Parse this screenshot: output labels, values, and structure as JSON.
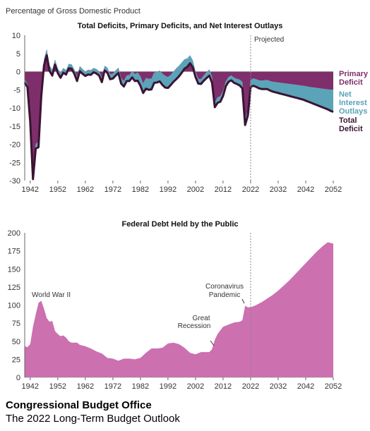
{
  "top_ylabel": "Percentage of Gross Domestic Product",
  "footer": {
    "org": "Congressional Budget Office",
    "publication": "The 2022 Long-Term Budget Outlook"
  },
  "colors": {
    "primary_deficit": "#7e2f6b",
    "net_interest": "#5aa3b8",
    "total_deficit": "#3a1433",
    "debt_fill": "#cc70b0",
    "axis": "#666666",
    "projected_line": "#888888"
  },
  "chart_data": [
    {
      "type": "area",
      "title": "Total Deficits, Primary Deficits, and Net Interest Outlays",
      "ylabel": "Percentage of Gross Domestic Product",
      "xlim": [
        1940,
        2052
      ],
      "ylim": [
        -30,
        10
      ],
      "xticks": [
        1942,
        1952,
        1962,
        1972,
        1982,
        1992,
        2002,
        2012,
        2022,
        2032,
        2042,
        2052
      ],
      "yticks": [
        10,
        5,
        0,
        -5,
        -10,
        -15,
        -20,
        -25,
        -30
      ],
      "projected_label": "Projected",
      "projected_from": 2022,
      "legend": [
        "Primary Deficit",
        "Net Interest Outlays",
        "Total Deficit"
      ],
      "series": [
        {
          "name": "Total Deficit",
          "x": [
            1940,
            1941,
            1942,
            1943,
            1944,
            1945,
            1946,
            1947,
            1948,
            1949,
            1950,
            1951,
            1952,
            1953,
            1954,
            1955,
            1956,
            1957,
            1958,
            1959,
            1960,
            1961,
            1962,
            1963,
            1964,
            1965,
            1966,
            1967,
            1968,
            1969,
            1970,
            1971,
            1972,
            1973,
            1974,
            1975,
            1976,
            1977,
            1978,
            1979,
            1980,
            1981,
            1982,
            1983,
            1984,
            1985,
            1986,
            1987,
            1988,
            1989,
            1990,
            1991,
            1992,
            1993,
            1994,
            1995,
            1996,
            1997,
            1998,
            1999,
            2000,
            2001,
            2002,
            2003,
            2004,
            2005,
            2006,
            2007,
            2008,
            2009,
            2010,
            2011,
            2012,
            2013,
            2014,
            2015,
            2016,
            2017,
            2018,
            2019,
            2020,
            2021,
            2022,
            2023,
            2024,
            2025,
            2026,
            2027,
            2028,
            2029,
            2030,
            2031,
            2032,
            2033,
            2034,
            2035,
            2036,
            2037,
            2038,
            2039,
            2040,
            2041,
            2042,
            2043,
            2044,
            2045,
            2046,
            2047,
            2048,
            2049,
            2050,
            2051,
            2052
          ],
          "values": [
            -3,
            -4.3,
            -13.9,
            -29.6,
            -21.2,
            -20.8,
            -6.9,
            1.7,
            4.5,
            0.2,
            -1.1,
            1.9,
            -0.4,
            -1.7,
            -0.3,
            -0.8,
            0.9,
            0.8,
            -0.6,
            -2.6,
            0.1,
            -0.6,
            -1.2,
            -0.8,
            -0.9,
            -0.2,
            -0.5,
            -1.1,
            -2.9,
            0.3,
            -0.3,
            -2.1,
            -1.9,
            -1.1,
            -0.4,
            -3.3,
            -4.1,
            -2.6,
            -2.6,
            -1.6,
            -2.6,
            -2.5,
            -3.9,
            -5.9,
            -4.7,
            -5,
            -4.9,
            -3.1,
            -3,
            -2.7,
            -3.7,
            -4.4,
            -4.5,
            -3.7,
            -2.8,
            -2.1,
            -1.3,
            -0.3,
            0.8,
            1.3,
            2.3,
            1.2,
            -1.5,
            -3.3,
            -3.4,
            -2.5,
            -1.8,
            -1.1,
            -3.1,
            -9.8,
            -8.6,
            -8.3,
            -6.7,
            -4,
            -2.8,
            -2.4,
            -3.1,
            -3.4,
            -3.8,
            -4.6,
            -14.7,
            -12.1,
            -4.2,
            -3.9,
            -4.2,
            -4.6,
            -4.8,
            -4.8,
            -4.8,
            -5.2,
            -5.5,
            -5.7,
            -5.9,
            -6.1,
            -6.3,
            -6.5,
            -6.7,
            -6.9,
            -7.1,
            -7.3,
            -7.5,
            -7.7,
            -8,
            -8.3,
            -8.6,
            -8.9,
            -9.2,
            -9.5,
            -9.8,
            -10.1,
            -10.4,
            -10.8,
            -11.1
          ]
        },
        {
          "name": "Net Interest Outlays",
          "x": [
            1940,
            1941,
            1942,
            1943,
            1944,
            1945,
            1946,
            1947,
            1948,
            1949,
            1950,
            1951,
            1952,
            1953,
            1954,
            1955,
            1956,
            1957,
            1958,
            1959,
            1960,
            1961,
            1962,
            1963,
            1964,
            1965,
            1966,
            1967,
            1968,
            1969,
            1970,
            1971,
            1972,
            1973,
            1974,
            1975,
            1976,
            1977,
            1978,
            1979,
            1980,
            1981,
            1982,
            1983,
            1984,
            1985,
            1986,
            1987,
            1988,
            1989,
            1990,
            1991,
            1992,
            1993,
            1994,
            1995,
            1996,
            1997,
            1998,
            1999,
            2000,
            2001,
            2002,
            2003,
            2004,
            2005,
            2006,
            2007,
            2008,
            2009,
            2010,
            2011,
            2012,
            2013,
            2014,
            2015,
            2016,
            2017,
            2018,
            2019,
            2020,
            2021,
            2022,
            2023,
            2024,
            2025,
            2026,
            2027,
            2028,
            2029,
            2030,
            2031,
            2032,
            2033,
            2034,
            2035,
            2036,
            2037,
            2038,
            2039,
            2040,
            2041,
            2042,
            2043,
            2044,
            2045,
            2046,
            2047,
            2048,
            2049,
            2050,
            2051,
            2052
          ],
          "values": [
            0.9,
            0.9,
            0.8,
            1,
            1.3,
            1.5,
            1.7,
            1.7,
            1.7,
            1.5,
            1.6,
            1.4,
            1.3,
            1.4,
            1.3,
            1.2,
            1.2,
            1.2,
            1.2,
            1.2,
            1.4,
            1.3,
            1.2,
            1.3,
            1.3,
            1.2,
            1.2,
            1.2,
            1.2,
            1.3,
            1.4,
            1.4,
            1.3,
            1.4,
            1.5,
            1.5,
            1.5,
            1.5,
            1.6,
            1.7,
            1.9,
            2.2,
            2.6,
            2.6,
            2.9,
            3.0,
            2.9,
            2.8,
            2.9,
            3.0,
            3.1,
            3.2,
            3.0,
            2.8,
            2.8,
            3.0,
            2.9,
            2.8,
            2.6,
            2.3,
            2.2,
            1.9,
            1.5,
            1.3,
            1.3,
            1.4,
            1.6,
            1.7,
            1.6,
            1.3,
            1.5,
            1.5,
            1.4,
            1.3,
            1.3,
            1.3,
            1.4,
            1.4,
            1.6,
            1.7,
            1.6,
            1.6,
            1.9,
            2.0,
            2.1,
            2.2,
            2.3,
            2.4,
            2.5,
            2.6,
            2.7,
            2.8,
            2.9,
            3.0,
            3.1,
            3.2,
            3.3,
            3.4,
            3.5,
            3.6,
            3.7,
            3.8,
            4.0,
            4.1,
            4.3,
            4.5,
            4.7,
            4.9,
            5.1,
            5.3,
            5.5,
            5.8,
            6.1
          ]
        }
      ]
    },
    {
      "type": "area",
      "title": "Federal Debt Held by the Public",
      "xlim": [
        1940,
        2052
      ],
      "ylim": [
        0,
        200
      ],
      "xticks": [
        1942,
        1952,
        1962,
        1972,
        1982,
        1992,
        2002,
        2012,
        2022,
        2032,
        2042,
        2052
      ],
      "yticks": [
        200,
        175,
        150,
        125,
        100,
        75,
        50,
        25,
        0
      ],
      "annotations": [
        {
          "text": "World War II",
          "x": 1946,
          "y": 106
        },
        {
          "text": "Great Recession",
          "x": 2009,
          "y": 52
        },
        {
          "text": "Coronavirus Pandemic",
          "x": 2020,
          "y": 100
        }
      ],
      "series": [
        {
          "name": "Federal Debt Held by the Public",
          "x": [
            1940,
            1941,
            1942,
            1943,
            1944,
            1945,
            1946,
            1947,
            1948,
            1949,
            1950,
            1951,
            1952,
            1953,
            1954,
            1955,
            1956,
            1957,
            1958,
            1959,
            1960,
            1962,
            1964,
            1966,
            1968,
            1970,
            1972,
            1974,
            1976,
            1978,
            1980,
            1982,
            1984,
            1986,
            1988,
            1990,
            1992,
            1994,
            1996,
            1998,
            2000,
            2002,
            2004,
            2006,
            2007,
            2008,
            2009,
            2010,
            2011,
            2012,
            2014,
            2016,
            2018,
            2019,
            2020,
            2021,
            2022,
            2024,
            2026,
            2028,
            2030,
            2032,
            2034,
            2036,
            2038,
            2040,
            2042,
            2044,
            2046,
            2048,
            2050,
            2052
          ],
          "values": [
            43,
            42,
            46,
            70,
            87,
            103,
            106,
            95,
            82,
            77,
            78,
            64,
            60,
            57,
            58,
            55,
            50,
            48,
            48,
            48,
            45,
            43,
            40,
            36,
            33,
            27,
            26,
            23,
            26,
            26,
            25,
            27,
            34,
            40,
            40,
            41,
            47,
            48,
            46,
            41,
            34,
            32,
            35,
            35,
            35,
            39,
            52,
            60,
            65,
            70,
            73,
            76,
            77,
            79,
            99,
            97,
            97,
            100,
            104,
            109,
            114,
            120,
            127,
            134,
            142,
            150,
            158,
            166,
            174,
            181,
            187,
            185
          ]
        }
      ]
    }
  ]
}
